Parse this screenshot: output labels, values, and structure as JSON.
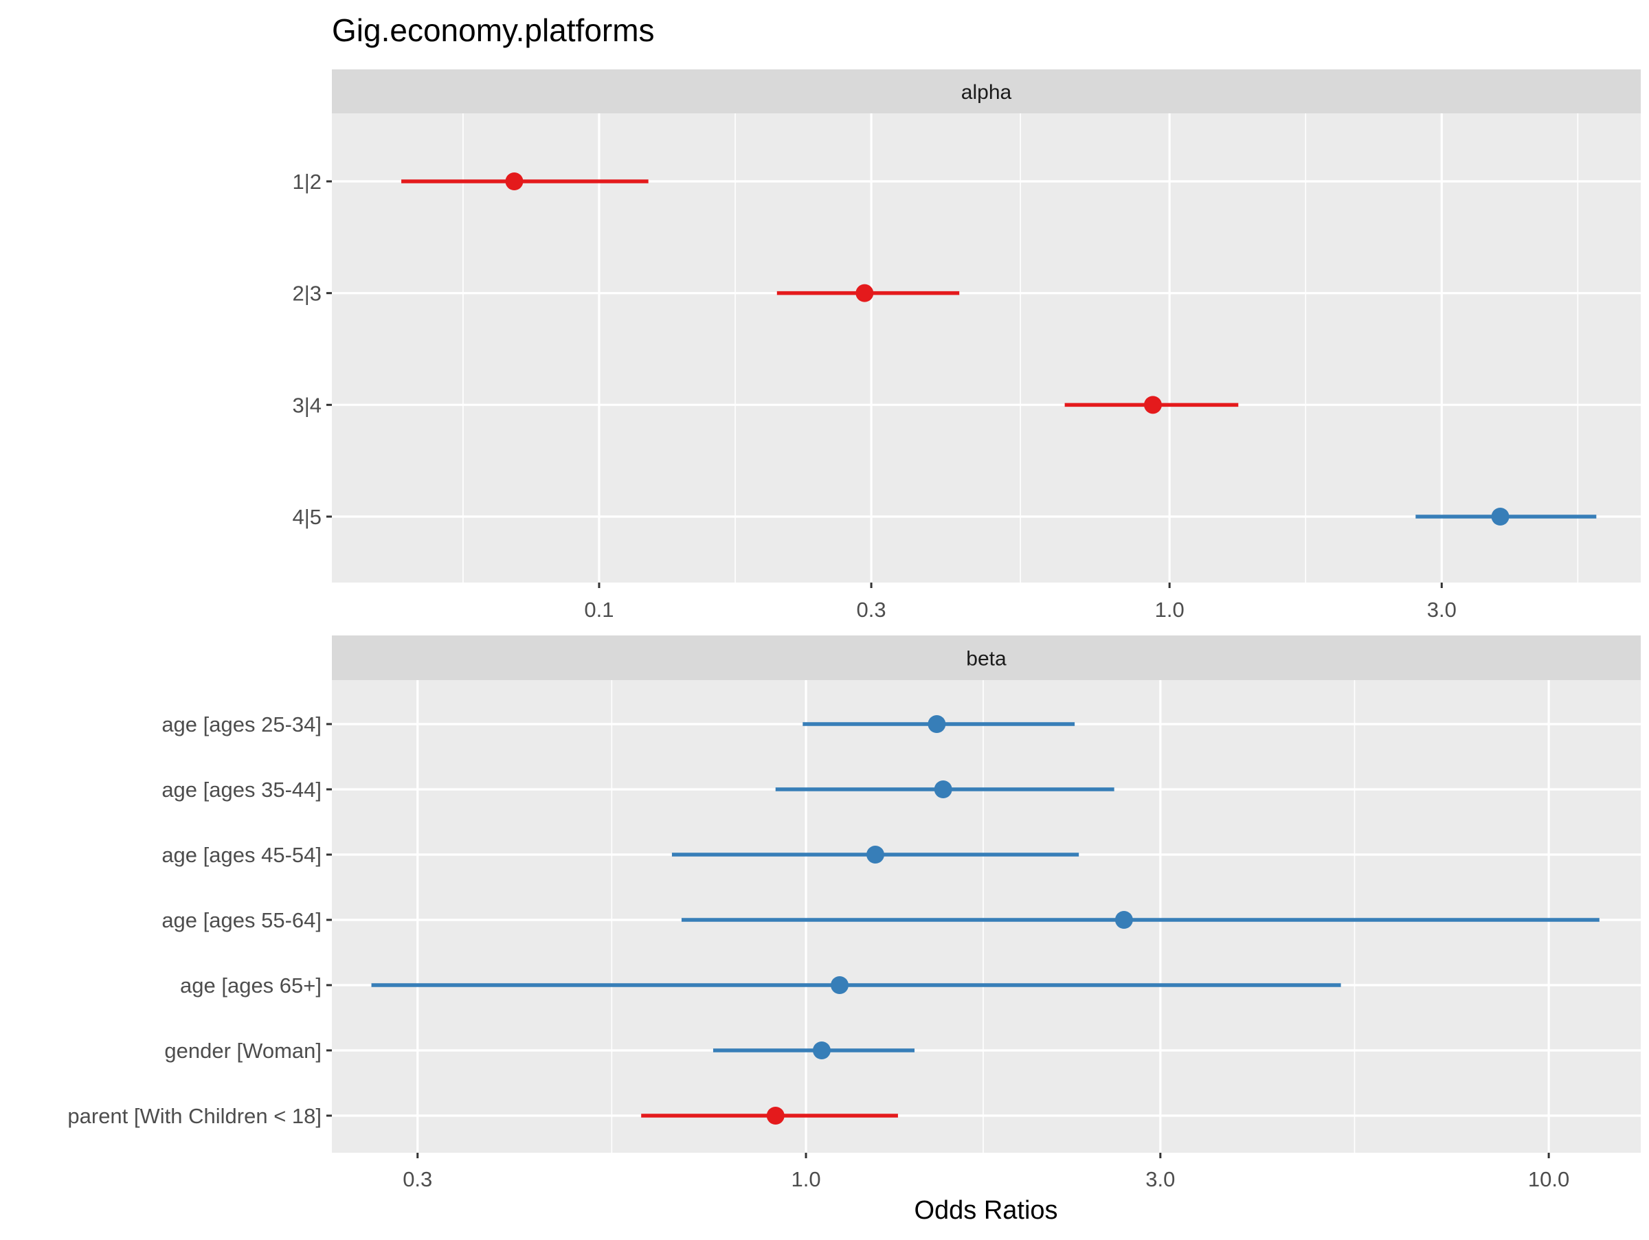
{
  "chart_data": {
    "type": "forest",
    "title": "Gig.economy.platforms",
    "xlabel": "Odds Ratios",
    "x_scale": "log10",
    "colors": {
      "positive": "#377EB8",
      "negative": "#E41A1C"
    },
    "panels": [
      {
        "name": "alpha",
        "xlim": [
          0.034,
          6.7
        ],
        "xticks": [
          0.1,
          0.3,
          1.0,
          3.0
        ],
        "xtick_labels": [
          "0.1",
          "0.3",
          "1.0",
          "3.0"
        ],
        "rows": [
          {
            "label": "1|2",
            "estimate": 0.071,
            "low": 0.045,
            "high": 0.122,
            "direction": "negative"
          },
          {
            "label": "2|3",
            "estimate": 0.292,
            "low": 0.205,
            "high": 0.428,
            "direction": "negative"
          },
          {
            "label": "3|4",
            "estimate": 0.935,
            "low": 0.655,
            "high": 1.32,
            "direction": "negative"
          },
          {
            "label": "4|5",
            "estimate": 3.8,
            "low": 2.7,
            "high": 5.6,
            "direction": "positive"
          }
        ]
      },
      {
        "name": "beta",
        "xlim": [
          0.23,
          13.3
        ],
        "xticks": [
          0.3,
          1.0,
          3.0,
          10.0
        ],
        "xtick_labels": [
          "0.3",
          "1.0",
          "3.0",
          "10.0"
        ],
        "rows": [
          {
            "label": "age [ages 25-34]",
            "estimate": 1.5,
            "low": 0.99,
            "high": 2.3,
            "direction": "positive"
          },
          {
            "label": "age [ages 35-44]",
            "estimate": 1.53,
            "low": 0.91,
            "high": 2.6,
            "direction": "positive"
          },
          {
            "label": "age [ages 45-54]",
            "estimate": 1.24,
            "low": 0.66,
            "high": 2.33,
            "direction": "positive"
          },
          {
            "label": "age [ages 55-64]",
            "estimate": 2.68,
            "low": 0.68,
            "high": 11.7,
            "direction": "positive"
          },
          {
            "label": "age [ages 65+]",
            "estimate": 1.11,
            "low": 0.26,
            "high": 5.25,
            "direction": "positive"
          },
          {
            "label": "gender [Woman]",
            "estimate": 1.05,
            "low": 0.75,
            "high": 1.4,
            "direction": "positive"
          },
          {
            "label": "parent [With Children < 18]",
            "estimate": 0.91,
            "low": 0.6,
            "high": 1.33,
            "direction": "negative"
          }
        ]
      }
    ]
  }
}
